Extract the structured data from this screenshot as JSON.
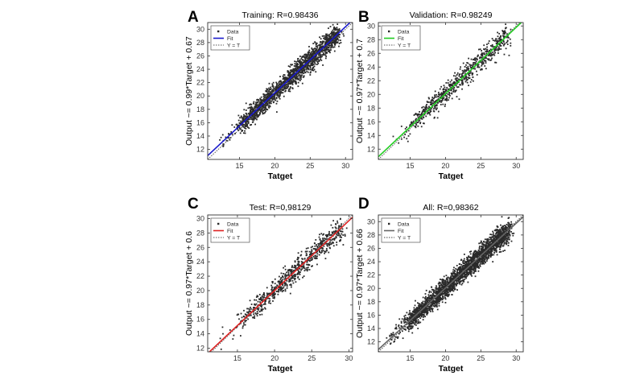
{
  "figure": {
    "description_text": ""
  },
  "chart_data": [
    {
      "panel_label": "A",
      "type": "scatter",
      "title": "Training: R=0.98436",
      "xlabel": "Tatget",
      "ylabel": "Output ~= 0.99*Target + 0.67",
      "xlim": [
        10.5,
        31.0
      ],
      "ylim": [
        10.5,
        31.0
      ],
      "xticks": [
        15,
        20,
        25,
        30
      ],
      "yticks": [
        12,
        14,
        16,
        18,
        20,
        22,
        24,
        26,
        28,
        30
      ],
      "legend": {
        "position": "top-left",
        "entries": [
          "Data",
          "Fit",
          "Y = T"
        ]
      },
      "fit": {
        "slope": 0.99,
        "intercept": 0.67,
        "color": "#1a1acc"
      },
      "identity_color": "#555555",
      "scatter": {
        "n_points": 1800,
        "x_range": [
          12.5,
          29.0
        ],
        "noise": 0.55,
        "seed": 11
      },
      "series": [
        {
          "name": "Data",
          "kind": "points"
        },
        {
          "name": "Fit",
          "kind": "line"
        },
        {
          "name": "Y = T",
          "kind": "dotted-line"
        }
      ]
    },
    {
      "panel_label": "B",
      "type": "scatter",
      "title": "Validation: R=0.98249",
      "xlabel": "Tatget",
      "ylabel": "Output ~= 0.97*Target + 0.7",
      "xlim": [
        10.5,
        31.0
      ],
      "ylim": [
        10.5,
        30.5
      ],
      "xticks": [
        15,
        20,
        25,
        30
      ],
      "yticks": [
        12,
        14,
        16,
        18,
        20,
        22,
        24,
        26,
        28,
        30
      ],
      "legend": {
        "position": "top-left",
        "entries": [
          "Data",
          "Fit",
          "Y = T"
        ]
      },
      "fit": {
        "slope": 0.97,
        "intercept": 0.7,
        "color": "#22cc22"
      },
      "identity_color": "#555555",
      "scatter": {
        "n_points": 700,
        "x_range": [
          13.0,
          29.0
        ],
        "noise": 0.6,
        "seed": 23
      },
      "series": [
        {
          "name": "Data",
          "kind": "points"
        },
        {
          "name": "Fit",
          "kind": "line"
        },
        {
          "name": "Y = T",
          "kind": "dotted-line"
        }
      ]
    },
    {
      "panel_label": "C",
      "type": "scatter",
      "title": "Test: R=0,98129",
      "xlabel": "Tatget",
      "ylabel": "Output ~= 0.97*Target + 0.6",
      "xlim": [
        11.0,
        30.5
      ],
      "ylim": [
        11.5,
        30.5
      ],
      "xticks": [
        15,
        20,
        25,
        30
      ],
      "yticks": [
        12,
        14,
        16,
        18,
        20,
        22,
        24,
        26,
        28,
        30
      ],
      "legend": {
        "position": "top-left",
        "entries": [
          "Data",
          "Fit",
          "Y = T"
        ]
      },
      "fit": {
        "slope": 0.97,
        "intercept": 0.6,
        "color": "#dd2222"
      },
      "identity_color": "#555555",
      "scatter": {
        "n_points": 700,
        "x_range": [
          13.0,
          29.0
        ],
        "noise": 0.6,
        "seed": 37
      },
      "series": [
        {
          "name": "Data",
          "kind": "points"
        },
        {
          "name": "Fit",
          "kind": "line"
        },
        {
          "name": "Y = T",
          "kind": "dotted-line"
        }
      ]
    },
    {
      "panel_label": "D",
      "type": "scatter",
      "title": "All: R=0,98362",
      "xlabel": "Tatget",
      "ylabel": "Output ~= 0.97*Target + 0.66",
      "xlim": [
        10.5,
        31.0
      ],
      "ylim": [
        10.5,
        31.0
      ],
      "xticks": [
        15,
        20,
        25,
        30
      ],
      "yticks": [
        12,
        14,
        16,
        18,
        20,
        22,
        24,
        26,
        28,
        30
      ],
      "legend": {
        "position": "top-left",
        "entries": [
          "Data",
          "Fit",
          "Y = T"
        ]
      },
      "fit": {
        "slope": 0.97,
        "intercept": 0.66,
        "color": "#666666"
      },
      "identity_color": "#444444",
      "scatter": {
        "n_points": 2400,
        "x_range": [
          12.0,
          29.0
        ],
        "noise": 0.6,
        "seed": 53
      },
      "series": [
        {
          "name": "Data",
          "kind": "points"
        },
        {
          "name": "Fit",
          "kind": "line"
        },
        {
          "name": "Y = T",
          "kind": "dotted-line"
        }
      ]
    }
  ]
}
